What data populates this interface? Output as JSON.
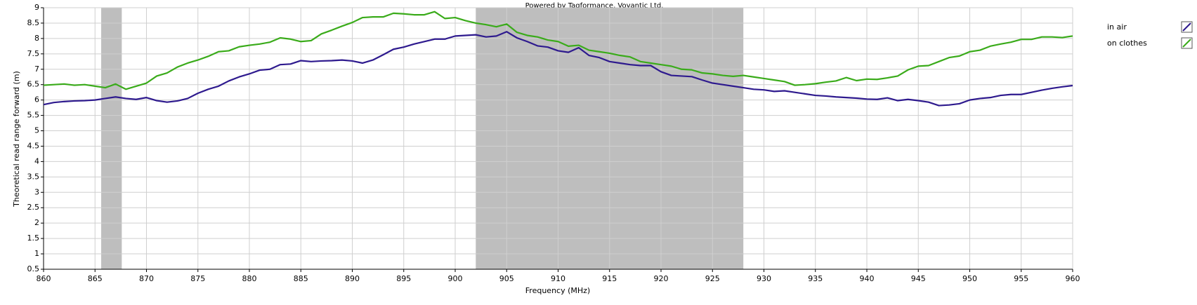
{
  "chart_data": {
    "type": "line",
    "title": "Powered by Tagformance, Voyantic Ltd.",
    "x_label": "Frequency (MHz)",
    "y_label": "Theoretical read range forward (m)",
    "x": [
      860,
      861,
      862,
      863,
      864,
      865,
      866,
      867,
      868,
      869,
      870,
      871,
      872,
      873,
      874,
      875,
      876,
      877,
      878,
      879,
      880,
      881,
      882,
      883,
      884,
      885,
      886,
      887,
      888,
      889,
      890,
      891,
      892,
      893,
      894,
      895,
      896,
      897,
      898,
      899,
      900,
      901,
      902,
      903,
      904,
      905,
      906,
      907,
      908,
      909,
      910,
      911,
      912,
      913,
      914,
      915,
      916,
      917,
      918,
      919,
      920,
      921,
      922,
      923,
      924,
      925,
      926,
      927,
      928,
      929,
      930,
      931,
      932,
      933,
      934,
      935,
      936,
      937,
      938,
      939,
      940,
      941,
      942,
      943,
      944,
      945,
      946,
      947,
      948,
      949,
      950,
      951,
      952,
      953,
      954,
      955,
      956,
      957,
      958,
      959,
      960
    ],
    "series": [
      {
        "name": "in air",
        "color": "#2e1a8e",
        "values": [
          5.85,
          5.92,
          5.95,
          5.97,
          5.98,
          6.0,
          6.05,
          6.1,
          6.05,
          6.02,
          6.08,
          5.98,
          5.93,
          5.97,
          6.05,
          6.22,
          6.35,
          6.45,
          6.62,
          6.75,
          6.85,
          6.97,
          7.0,
          7.15,
          7.17,
          7.28,
          7.25,
          7.27,
          7.28,
          7.3,
          7.27,
          7.2,
          7.3,
          7.47,
          7.65,
          7.72,
          7.82,
          7.9,
          7.98,
          7.98,
          8.08,
          8.1,
          8.12,
          8.05,
          8.08,
          8.22,
          8.02,
          7.9,
          7.76,
          7.72,
          7.6,
          7.55,
          7.7,
          7.45,
          7.38,
          7.25,
          7.2,
          7.15,
          7.12,
          7.12,
          6.92,
          6.8,
          6.78,
          6.76,
          6.65,
          6.55,
          6.5,
          6.45,
          6.4,
          6.35,
          6.33,
          6.28,
          6.3,
          6.25,
          6.2,
          6.15,
          6.13,
          6.1,
          6.08,
          6.06,
          6.03,
          6.02,
          6.07,
          5.98,
          6.02,
          5.98,
          5.93,
          5.82,
          5.84,
          5.88,
          6.0,
          6.05,
          6.08,
          6.15,
          6.18,
          6.18,
          6.25,
          6.32,
          6.38,
          6.43,
          6.47
        ]
      },
      {
        "name": "on clothes",
        "color": "#3aab1a",
        "values": [
          6.48,
          6.5,
          6.52,
          6.48,
          6.5,
          6.45,
          6.4,
          6.52,
          6.35,
          6.45,
          6.55,
          6.78,
          6.88,
          7.07,
          7.2,
          7.3,
          7.42,
          7.57,
          7.6,
          7.73,
          7.78,
          7.82,
          7.88,
          8.02,
          7.98,
          7.9,
          7.93,
          8.15,
          8.27,
          8.4,
          8.52,
          8.68,
          8.7,
          8.7,
          8.82,
          8.8,
          8.77,
          8.77,
          8.87,
          8.65,
          8.68,
          8.58,
          8.5,
          8.45,
          8.38,
          8.47,
          8.2,
          8.1,
          8.05,
          7.95,
          7.9,
          7.75,
          7.78,
          7.62,
          7.57,
          7.52,
          7.45,
          7.4,
          7.25,
          7.2,
          7.15,
          7.1,
          7.0,
          6.98,
          6.88,
          6.85,
          6.8,
          6.77,
          6.8,
          6.75,
          6.7,
          6.65,
          6.6,
          6.48,
          6.5,
          6.53,
          6.58,
          6.62,
          6.73,
          6.63,
          6.68,
          6.67,
          6.72,
          6.78,
          6.98,
          7.1,
          7.12,
          7.25,
          7.38,
          7.43,
          7.57,
          7.62,
          7.75,
          7.82,
          7.88,
          7.97,
          7.97,
          8.05,
          8.05,
          8.03,
          8.08
        ]
      }
    ],
    "highlight_bands": [
      [
        865.6,
        867.6
      ],
      [
        902,
        928
      ]
    ],
    "band_color": "#bebebe",
    "xlim": [
      860,
      960
    ],
    "xticks": [
      860,
      865,
      870,
      875,
      880,
      885,
      890,
      895,
      900,
      905,
      910,
      915,
      920,
      925,
      930,
      935,
      940,
      945,
      950,
      955,
      960
    ],
    "ylim": [
      0.5,
      9
    ],
    "yticks": [
      0.5,
      1,
      1.5,
      2,
      2.5,
      3,
      3.5,
      4,
      4.5,
      5,
      5.5,
      6,
      6.5,
      7,
      7.5,
      8,
      8.5,
      9
    ],
    "grid": true
  }
}
